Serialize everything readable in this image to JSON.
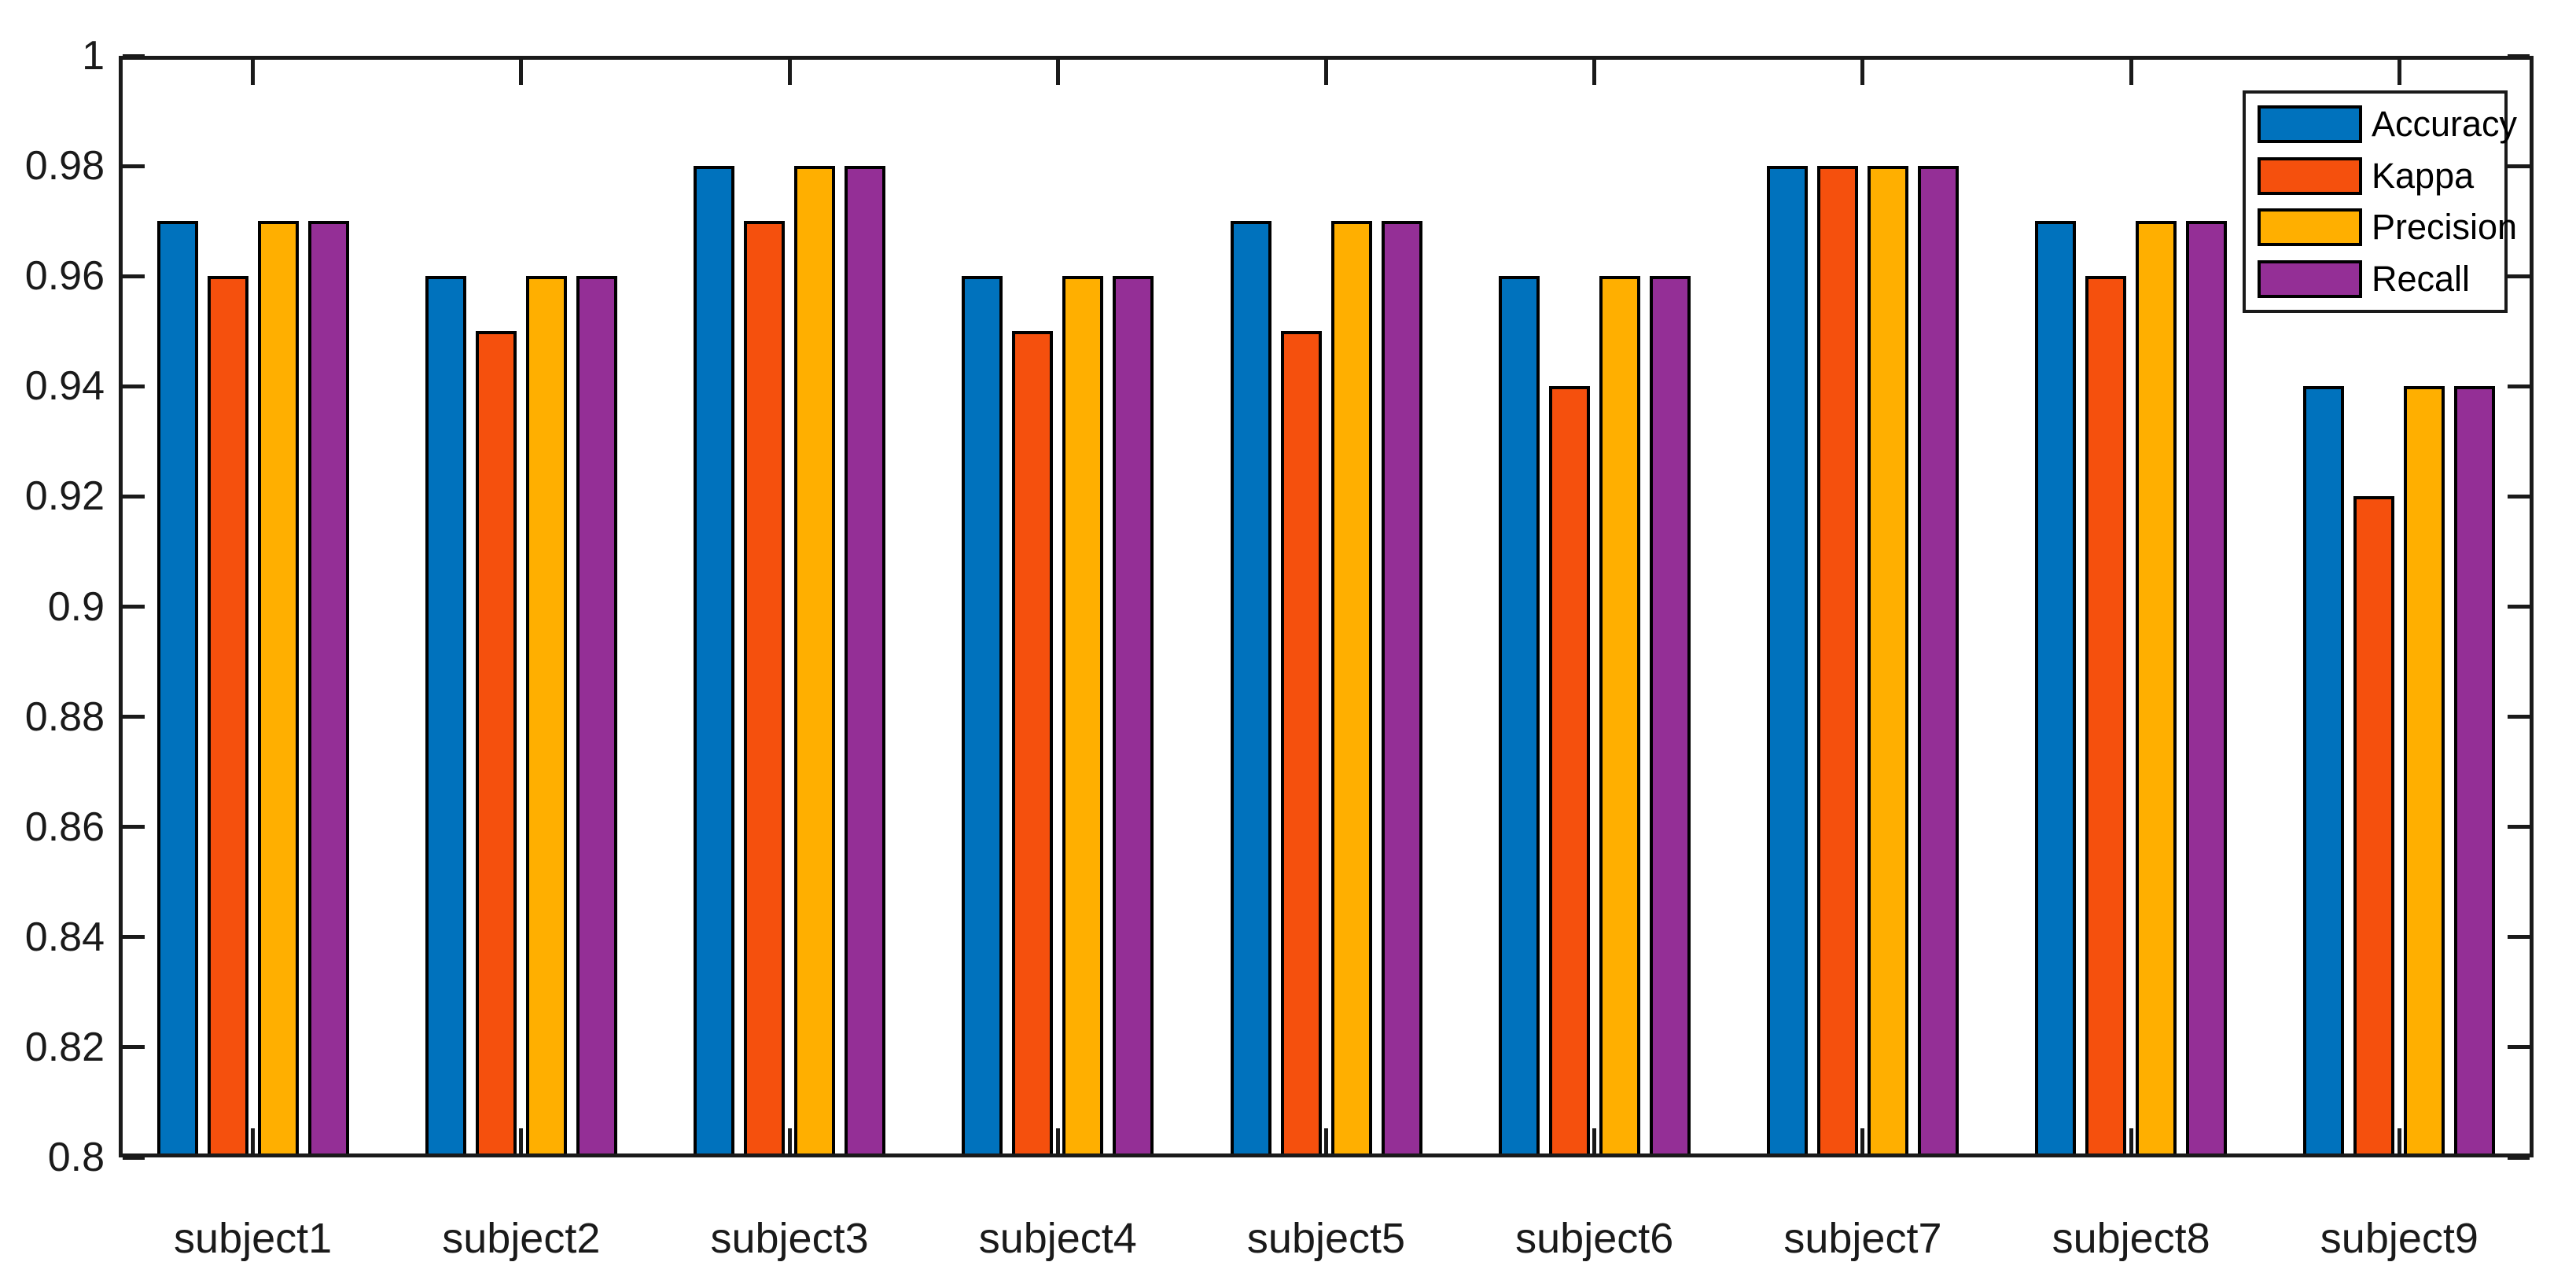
{
  "figure": {
    "background_color": "#ffffff",
    "axis_color": "#1a1a1a",
    "bar_outline_color": "#000000"
  },
  "chart_data": {
    "type": "bar",
    "title": "",
    "xlabel": "",
    "ylabel": "",
    "categories": [
      "subject1",
      "subject2",
      "subject3",
      "subject4",
      "subject5",
      "subject6",
      "subject7",
      "subject8",
      "subject9"
    ],
    "series": [
      {
        "name": "Accuracy",
        "color": "#0072BD",
        "values": [
          0.97,
          0.96,
          0.98,
          0.96,
          0.97,
          0.96,
          0.98,
          0.97,
          0.94
        ]
      },
      {
        "name": "Kappa",
        "color": "#F5500D",
        "values": [
          0.96,
          0.95,
          0.97,
          0.95,
          0.95,
          0.94,
          0.98,
          0.96,
          0.92
        ]
      },
      {
        "name": "Precision",
        "color": "#FFAF00",
        "values": [
          0.97,
          0.96,
          0.98,
          0.96,
          0.97,
          0.96,
          0.98,
          0.97,
          0.94
        ]
      },
      {
        "name": "Recall",
        "color": "#942F96",
        "values": [
          0.97,
          0.96,
          0.98,
          0.96,
          0.97,
          0.96,
          0.98,
          0.97,
          0.94
        ]
      }
    ],
    "ylim": [
      0.8,
      1.0
    ],
    "y_ticks": {
      "values": [
        1.0,
        0.98,
        0.96,
        0.94,
        0.92,
        0.9,
        0.88,
        0.86,
        0.84,
        0.82,
        0.8
      ],
      "labels": [
        "1",
        "0.98",
        "0.96",
        "0.94",
        "0.92",
        "0.9",
        "0.88",
        "0.86",
        "0.84",
        "0.82",
        "0.8"
      ]
    },
    "grid": false,
    "legend": {
      "position": "northeast",
      "entries": [
        "Accuracy",
        "Kappa",
        "Precision",
        "Recall"
      ]
    }
  }
}
